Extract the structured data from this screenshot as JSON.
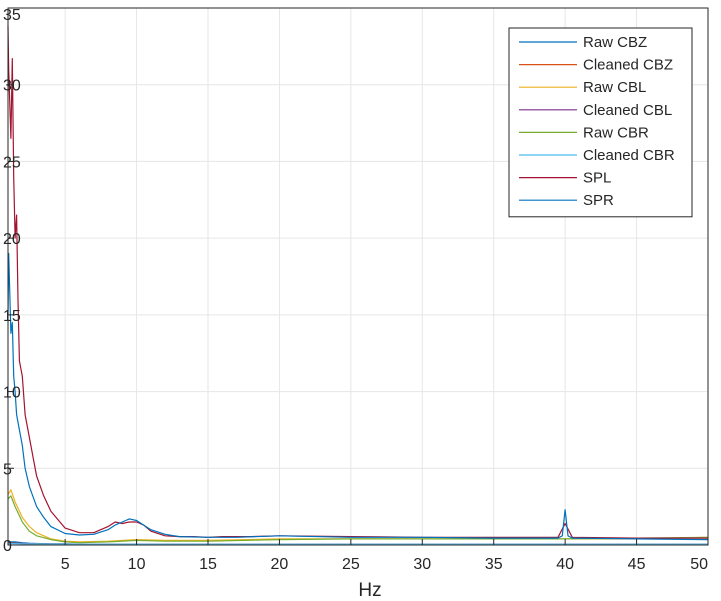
{
  "chart_data": {
    "type": "line",
    "title": "",
    "xlabel": "Hz",
    "ylabel": "",
    "xlim": [
      1,
      50
    ],
    "ylim": [
      0,
      35
    ],
    "xticks": [
      5,
      10,
      15,
      20,
      25,
      30,
      35,
      40,
      45,
      50
    ],
    "yticks": [
      0,
      5,
      10,
      15,
      20,
      25,
      30,
      35
    ],
    "xtick_labels": [
      "5",
      "10",
      "15",
      "20",
      "25",
      "30",
      "35",
      "40",
      "45",
      "50"
    ],
    "ytick_labels": [
      "0",
      "5",
      "10",
      "15",
      "20",
      "25",
      "30",
      "35"
    ],
    "grid": true,
    "legend_position": "top-right",
    "series": [
      {
        "name": "Raw CBZ",
        "color": "#0072BD",
        "x": [
          1,
          1.5,
          2,
          2.5,
          3,
          4,
          5,
          6,
          7,
          8,
          9,
          9.5,
          10,
          11,
          12,
          15,
          20,
          25,
          30,
          35,
          39.5,
          40,
          40.5,
          45,
          50
        ],
        "y": [
          0.2,
          0.2,
          0.15,
          0.12,
          0.1,
          0.08,
          0.07,
          0.06,
          0.06,
          0.06,
          0.06,
          0.06,
          0.06,
          0.05,
          0.05,
          0.05,
          0.05,
          0.05,
          0.05,
          0.05,
          0.05,
          0.05,
          0.05,
          0.05,
          0.05
        ]
      },
      {
        "name": "Cleaned CBZ",
        "color": "#D95319",
        "x": [
          1,
          2,
          3,
          5,
          10,
          20,
          30,
          40,
          50
        ],
        "y": [
          0.15,
          0.1,
          0.08,
          0.06,
          0.05,
          0.05,
          0.05,
          0.05,
          0.05
        ]
      },
      {
        "name": "Raw CBL",
        "color": "#EDB120",
        "x": [
          1,
          1.2,
          1.5,
          2,
          2.5,
          3,
          4,
          5,
          6,
          8,
          10,
          12,
          15,
          20,
          25,
          30,
          35,
          40,
          45,
          50
        ],
        "y": [
          3.3,
          3.6,
          2.8,
          1.8,
          1.2,
          0.8,
          0.4,
          0.25,
          0.2,
          0.25,
          0.35,
          0.3,
          0.3,
          0.4,
          0.4,
          0.4,
          0.4,
          0.4,
          0.4,
          0.5
        ]
      },
      {
        "name": "Cleaned CBL",
        "color": "#7E2F8E",
        "x": [
          1,
          2,
          3,
          5,
          10,
          20,
          30,
          40,
          50
        ],
        "y": [
          0.12,
          0.1,
          0.08,
          0.06,
          0.05,
          0.05,
          0.05,
          0.05,
          0.05
        ]
      },
      {
        "name": "Raw CBR",
        "color": "#77AC30",
        "x": [
          1,
          1.2,
          1.5,
          2,
          2.5,
          3,
          4,
          5,
          6,
          8,
          10,
          12,
          15,
          20,
          25,
          30,
          35,
          40,
          45,
          50
        ],
        "y": [
          3.0,
          3.2,
          2.5,
          1.5,
          0.9,
          0.6,
          0.35,
          0.2,
          0.15,
          0.2,
          0.3,
          0.25,
          0.25,
          0.35,
          0.4,
          0.4,
          0.4,
          0.4,
          0.45,
          0.5
        ]
      },
      {
        "name": "Cleaned CBR",
        "color": "#4DBEEE",
        "x": [
          1,
          2,
          3,
          5,
          10,
          20,
          30,
          40,
          50
        ],
        "y": [
          0.1,
          0.08,
          0.07,
          0.05,
          0.05,
          0.05,
          0.05,
          0.05,
          0.05
        ]
      },
      {
        "name": "SPL",
        "color": "#A2142F",
        "x": [
          1,
          1.05,
          1.2,
          1.3,
          1.4,
          1.5,
          1.6,
          1.7,
          1.8,
          2,
          2.2,
          2.5,
          2.8,
          3,
          3.5,
          4,
          5,
          6,
          7,
          8,
          8.5,
          9,
          9.5,
          10,
          10.5,
          11,
          12,
          13,
          14,
          15,
          16,
          18,
          20,
          25,
          30,
          35,
          39.5,
          40,
          40.5,
          45,
          50
        ],
        "y": [
          33.8,
          31.0,
          26.5,
          31.7,
          24.0,
          20.0,
          21.5,
          16.0,
          12.0,
          11.0,
          8.5,
          7.0,
          5.5,
          4.5,
          3.2,
          2.2,
          1.1,
          0.8,
          0.8,
          1.2,
          1.5,
          1.4,
          1.5,
          1.5,
          1.3,
          0.9,
          0.6,
          0.55,
          0.55,
          0.5,
          0.55,
          0.55,
          0.6,
          0.55,
          0.5,
          0.5,
          0.5,
          1.4,
          0.5,
          0.45,
          0.45
        ]
      },
      {
        "name": "SPR",
        "color": "#0072BD",
        "x": [
          1,
          1.05,
          1.2,
          1.3,
          1.4,
          1.5,
          1.6,
          1.8,
          2,
          2.2,
          2.5,
          3,
          3.5,
          4,
          5,
          6,
          7,
          8,
          8.5,
          9,
          9.5,
          10,
          10.5,
          11,
          12,
          13,
          15,
          17,
          20,
          25,
          30,
          35,
          39.5,
          39.8,
          40,
          40.2,
          40.5,
          45,
          50
        ],
        "y": [
          15.0,
          19.0,
          13.8,
          14.5,
          11.0,
          10.0,
          8.5,
          7.5,
          6.5,
          5.0,
          3.8,
          2.5,
          1.8,
          1.2,
          0.75,
          0.65,
          0.7,
          1.0,
          1.3,
          1.5,
          1.7,
          1.6,
          1.3,
          1.0,
          0.7,
          0.55,
          0.5,
          0.5,
          0.6,
          0.5,
          0.5,
          0.45,
          0.45,
          0.6,
          2.3,
          0.6,
          0.45,
          0.4,
          0.35
        ]
      }
    ]
  }
}
